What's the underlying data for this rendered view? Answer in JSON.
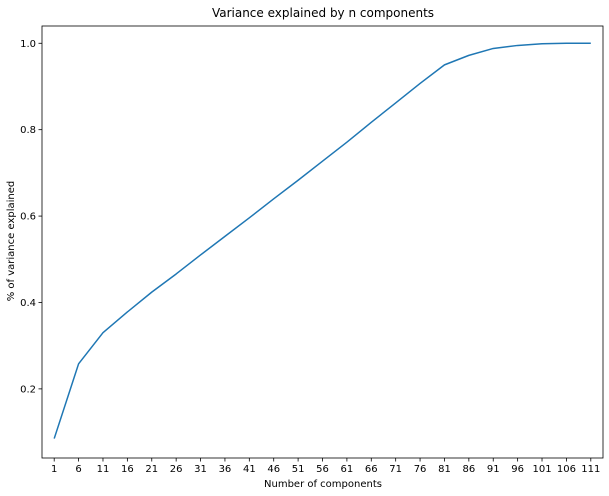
{
  "chart_data": {
    "type": "line",
    "title": "Variance explained by n components",
    "xlabel": "Number of components",
    "ylabel": "% of variance explained",
    "x_ticks": [
      "1",
      "6",
      "11",
      "16",
      "21",
      "26",
      "31",
      "36",
      "41",
      "46",
      "51",
      "56",
      "61",
      "66",
      "71",
      "76",
      "81",
      "86",
      "91",
      "96",
      "101",
      "106",
      "111"
    ],
    "y_ticks": [
      0.2,
      0.4,
      0.6,
      0.8,
      1.0
    ],
    "y_tick_labels": [
      "0.2",
      "0.4",
      "0.6",
      "0.8",
      "1.0"
    ],
    "xlim": [
      -1.5,
      113.5
    ],
    "ylim": [
      0.04,
      1.04
    ],
    "grid": false,
    "series": [
      {
        "color": "#1f77b4",
        "x": [
          1,
          6,
          11,
          16,
          21,
          26,
          31,
          36,
          41,
          46,
          51,
          56,
          61,
          66,
          71,
          76,
          81,
          86,
          91,
          96,
          101,
          106,
          111
        ],
        "y": [
          0.085,
          0.258,
          0.33,
          0.378,
          0.424,
          0.466,
          0.51,
          0.553,
          0.596,
          0.64,
          0.683,
          0.727,
          0.771,
          0.817,
          0.862,
          0.907,
          0.95,
          0.972,
          0.988,
          0.995,
          0.999,
          1.0,
          1.0
        ]
      }
    ]
  }
}
